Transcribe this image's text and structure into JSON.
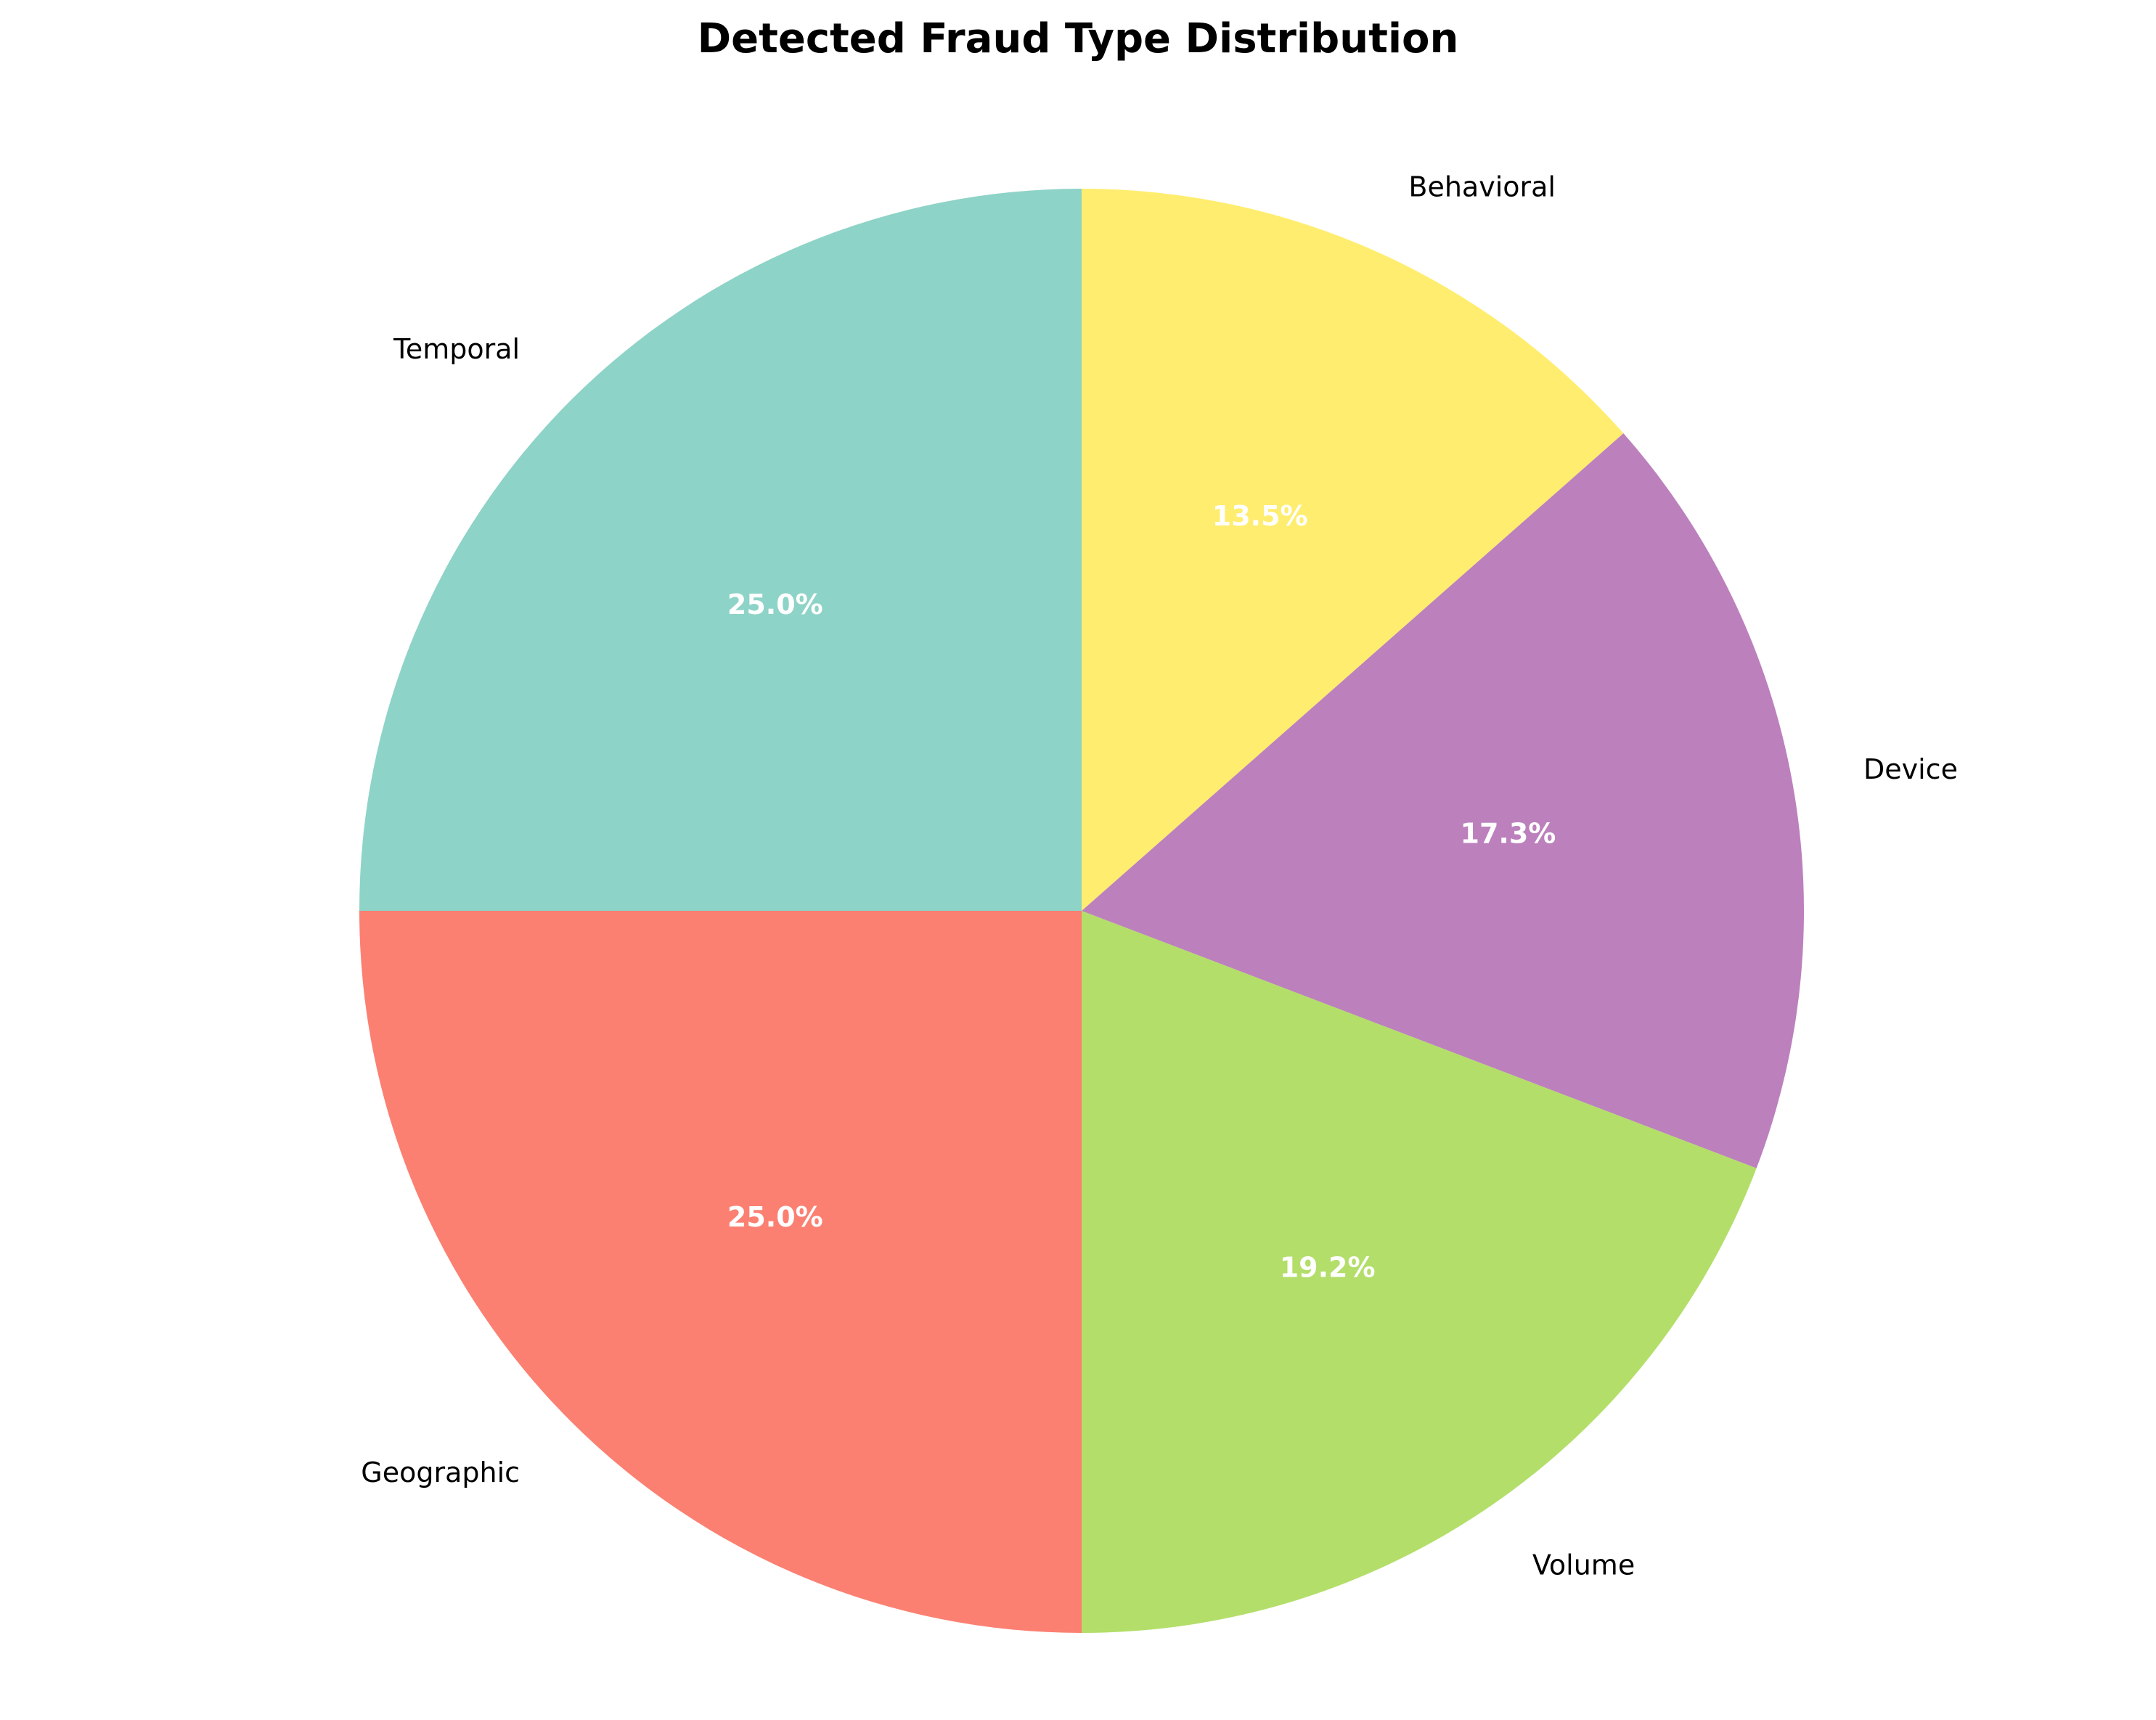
{
  "chart_data": {
    "type": "pie",
    "title": "Detected Fraud Type Distribution",
    "start_angle_deg": 90,
    "direction": "counterclockwise",
    "slices": [
      {
        "label": "Temporal",
        "value": 25.0,
        "pct_text": "25.0%",
        "color": "#8ED3C7"
      },
      {
        "label": "Geographic",
        "value": 25.0,
        "pct_text": "25.0%",
        "color": "#FB8072"
      },
      {
        "label": "Volume",
        "value": 19.2,
        "pct_text": "19.2%",
        "color": "#B3DE69"
      },
      {
        "label": "Device",
        "value": 17.3,
        "pct_text": "17.3%",
        "color": "#BC80BD"
      },
      {
        "label": "Behavioral",
        "value": 13.5,
        "pct_text": "13.5%",
        "color": "#FFED6F"
      }
    ]
  }
}
